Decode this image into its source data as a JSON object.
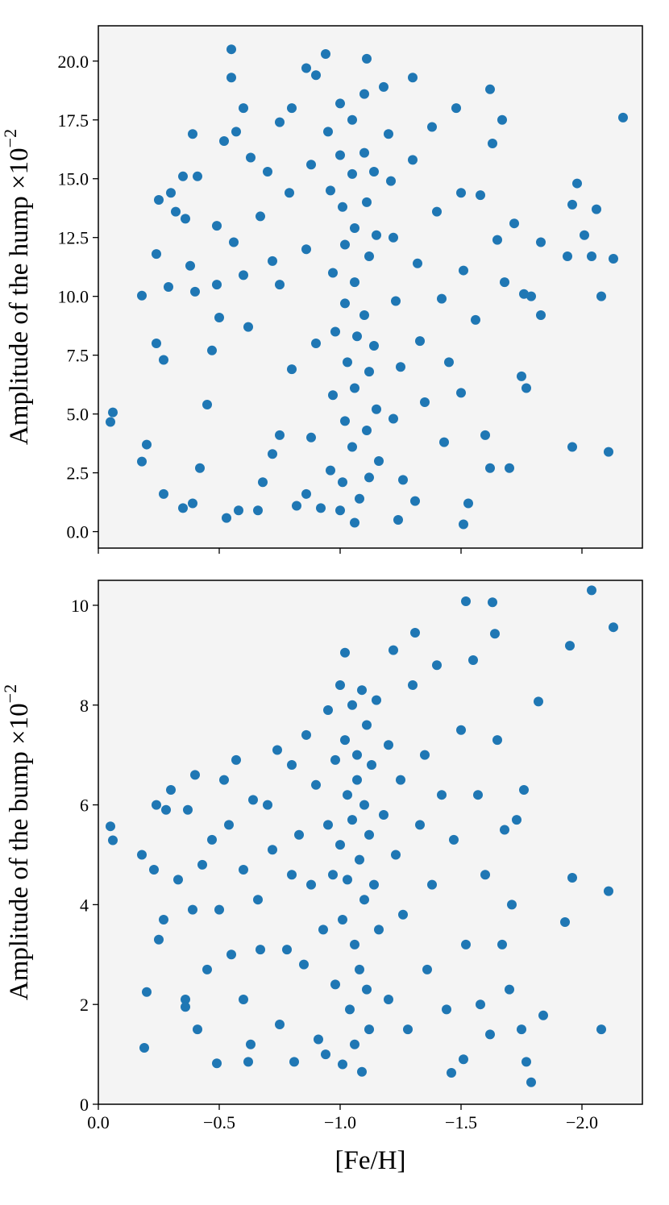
{
  "chart_data": [
    {
      "type": "scatter",
      "ylabel": "Amplitude of the hump ×10",
      "ylabel_exponent": "−2",
      "color": "#1f77b4",
      "xlim": [
        0,
        -2.25
      ],
      "xticks": [
        0,
        -0.5,
        -1,
        -1.5,
        -2
      ],
      "ylim": [
        -0.7,
        21.5
      ],
      "yticks": [
        {
          "value": 0,
          "label": "0.0"
        },
        2.5,
        {
          "value": 5,
          "label": "5.0"
        },
        7.5,
        {
          "value": 10,
          "label": "10.0"
        },
        12.5,
        {
          "value": 15,
          "label": "15.0"
        },
        17.5,
        {
          "value": 20,
          "label": "20.0"
        }
      ],
      "x": [
        -0.05,
        -0.06,
        -0.18,
        -0.18,
        -0.2,
        -0.24,
        -0.25,
        -0.24,
        -0.27,
        -0.29,
        -0.3,
        -0.32,
        -0.35,
        -0.36,
        -0.38,
        -0.39,
        -0.4,
        -0.41,
        -0.27,
        -0.35,
        -0.39,
        -0.42,
        -0.45,
        -0.47,
        -0.49,
        -0.49,
        -0.5,
        -0.52,
        -0.55,
        -0.55,
        -0.56,
        -0.57,
        -0.6,
        -0.6,
        -0.62,
        -0.53,
        -0.58,
        -0.66,
        -0.63,
        -0.67,
        -0.7,
        -0.72,
        -0.75,
        -0.75,
        -0.79,
        -0.8,
        -0.8,
        -0.75,
        -0.72,
        -0.68,
        -0.82,
        -0.86,
        -0.9,
        -0.94,
        -0.88,
        -0.86,
        -0.9,
        -0.88,
        -0.86,
        -0.92,
        -0.95,
        -0.96,
        -0.97,
        -0.98,
        -0.97,
        -0.96,
        -1.0,
        -1.0,
        -1.01,
        -1.02,
        -1.02,
        -1.03,
        -1.02,
        -1.01,
        -1.0,
        -1.06,
        -1.05,
        -1.05,
        -1.06,
        -1.06,
        -1.07,
        -1.06,
        -1.05,
        -1.08,
        -1.11,
        -1.1,
        -1.1,
        -1.11,
        -1.12,
        -1.1,
        -1.12,
        -1.11,
        -1.12,
        -1.14,
        -1.15,
        -1.14,
        -1.15,
        -1.16,
        -1.18,
        -1.2,
        -1.21,
        -1.22,
        -1.23,
        -1.25,
        -1.22,
        -1.26,
        -1.24,
        -1.3,
        -1.3,
        -1.32,
        -1.33,
        -1.35,
        -1.31,
        -1.38,
        -1.4,
        -1.42,
        -1.45,
        -1.43,
        -1.48,
        -1.5,
        -1.51,
        -1.5,
        -1.51,
        -1.53,
        -1.56,
        -1.58,
        -1.6,
        -1.62,
        -1.63,
        -1.62,
        -1.65,
        -1.67,
        -1.68,
        -1.7,
        -1.72,
        -1.75,
        -1.77,
        -1.76,
        -1.79,
        -1.83,
        -1.83,
        -1.94,
        -1.96,
        -1.98,
        -1.96,
        -2.01,
        -2.04,
        -2.08,
        -2.06,
        -2.11,
        -2.13,
        -2.17
      ],
      "values": [
        4.66,
        5.07,
        10.03,
        2.98,
        3.7,
        11.8,
        14.1,
        8.0,
        7.3,
        10.4,
        14.4,
        13.6,
        15.1,
        13.3,
        11.3,
        16.9,
        10.2,
        15.1,
        1.6,
        1.0,
        1.2,
        2.7,
        5.4,
        7.7,
        10.5,
        13.0,
        9.1,
        16.6,
        20.5,
        19.3,
        12.3,
        17.0,
        18.0,
        10.9,
        8.7,
        0.58,
        0.9,
        0.9,
        15.9,
        13.4,
        15.3,
        11.5,
        17.4,
        10.5,
        14.4,
        18.0,
        6.9,
        4.1,
        3.3,
        2.1,
        1.1,
        19.7,
        19.4,
        20.3,
        15.6,
        12.0,
        8.0,
        4.0,
        1.6,
        1.0,
        17.0,
        14.5,
        11.0,
        8.5,
        5.8,
        2.6,
        18.2,
        16.0,
        13.8,
        12.2,
        9.7,
        7.2,
        4.7,
        2.1,
        0.9,
        0.38,
        17.5,
        15.2,
        12.9,
        10.6,
        8.3,
        6.1,
        3.6,
        1.4,
        20.1,
        18.6,
        16.1,
        14.0,
        11.7,
        9.2,
        6.8,
        4.3,
        2.3,
        15.3,
        12.6,
        7.9,
        5.2,
        3.0,
        18.9,
        16.9,
        14.9,
        12.5,
        9.8,
        7.0,
        4.8,
        2.2,
        0.5,
        19.3,
        15.8,
        11.4,
        8.1,
        5.5,
        1.3,
        17.2,
        13.6,
        9.9,
        7.2,
        3.8,
        18.0,
        14.4,
        11.1,
        5.9,
        0.31,
        1.2,
        9.0,
        14.3,
        4.1,
        18.8,
        16.5,
        2.7,
        12.4,
        17.5,
        10.6,
        2.7,
        13.1,
        6.6,
        6.1,
        10.1,
        10.0,
        12.3,
        9.2,
        11.7,
        13.9,
        14.8,
        3.6,
        12.6,
        11.7,
        10.0,
        13.7,
        3.39,
        11.6,
        17.6
      ]
    },
    {
      "type": "scatter",
      "ylabel": "Amplitude of the bump ×10",
      "ylabel_exponent": "−2",
      "xlabel": "[Fe/H]",
      "color": "#1f77b4",
      "xlim": [
        0,
        -2.25
      ],
      "xticks": [
        {
          "value": 0,
          "label": "0.0"
        },
        {
          "value": -0.5,
          "label": "−0.5"
        },
        {
          "value": -1,
          "label": "−1.0"
        },
        {
          "value": -1.5,
          "label": "−1.5"
        },
        {
          "value": -2,
          "label": "−2.0"
        }
      ],
      "ylim": [
        0,
        10.5
      ],
      "yticks": [
        0,
        2,
        4,
        6,
        8,
        10
      ],
      "x": [
        -0.05,
        -0.06,
        -0.19,
        -0.2,
        -0.18,
        -0.23,
        -0.24,
        -0.25,
        -0.27,
        -0.28,
        -0.3,
        -0.33,
        -0.36,
        -0.36,
        -0.37,
        -0.39,
        -0.4,
        -0.41,
        -0.43,
        -0.45,
        -0.47,
        -0.49,
        -0.5,
        -0.52,
        -0.54,
        -0.55,
        -0.57,
        -0.6,
        -0.6,
        -0.62,
        -0.63,
        -0.64,
        -0.66,
        -0.67,
        -0.7,
        -0.72,
        -0.74,
        -0.75,
        -0.78,
        -0.8,
        -0.8,
        -0.81,
        -0.83,
        -0.85,
        -0.86,
        -0.88,
        -0.9,
        -0.91,
        -0.93,
        -0.95,
        -0.95,
        -0.94,
        -0.97,
        -0.98,
        -0.98,
        -1.0,
        -1.0,
        -1.01,
        -1.01,
        -1.02,
        -1.02,
        -1.03,
        -1.03,
        -1.04,
        -1.05,
        -1.05,
        -1.06,
        -1.06,
        -1.07,
        -1.07,
        -1.08,
        -1.08,
        -1.09,
        -1.09,
        -1.1,
        -1.1,
        -1.11,
        -1.11,
        -1.12,
        -1.12,
        -1.13,
        -1.14,
        -1.15,
        -1.16,
        -1.18,
        -1.2,
        -1.2,
        -1.22,
        -1.23,
        -1.25,
        -1.26,
        -1.28,
        -1.3,
        -1.31,
        -1.33,
        -1.35,
        -1.36,
        -1.38,
        -1.4,
        -1.42,
        -1.44,
        -1.46,
        -1.47,
        -1.5,
        -1.51,
        -1.52,
        -1.52,
        -1.55,
        -1.57,
        -1.58,
        -1.6,
        -1.62,
        -1.63,
        -1.64,
        -1.65,
        -1.67,
        -1.68,
        -1.7,
        -1.71,
        -1.73,
        -1.75,
        -1.76,
        -1.77,
        -1.79,
        -1.82,
        -1.84,
        -1.93,
        -1.95,
        -1.96,
        -2.04,
        -2.08,
        -2.11,
        -2.13
      ],
      "values": [
        5.57,
        5.29,
        1.13,
        2.25,
        5.0,
        4.7,
        6.0,
        3.3,
        3.7,
        5.9,
        6.3,
        4.5,
        2.1,
        1.95,
        5.9,
        3.9,
        6.6,
        1.5,
        4.8,
        2.7,
        5.3,
        0.82,
        3.9,
        6.5,
        5.6,
        3.0,
        6.9,
        4.7,
        2.1,
        0.85,
        1.2,
        6.1,
        4.1,
        3.1,
        6.0,
        5.1,
        7.1,
        1.6,
        3.1,
        4.6,
        6.8,
        0.85,
        5.4,
        2.8,
        7.4,
        4.4,
        6.4,
        1.3,
        3.5,
        7.9,
        5.6,
        1.0,
        4.6,
        6.9,
        2.4,
        8.4,
        5.2,
        3.7,
        0.8,
        9.05,
        7.3,
        6.2,
        4.5,
        1.9,
        8.0,
        5.7,
        3.2,
        1.2,
        7.0,
        6.5,
        4.9,
        2.7,
        8.3,
        0.65,
        6.0,
        4.1,
        7.6,
        2.3,
        5.4,
        1.5,
        6.8,
        4.4,
        8.1,
        3.5,
        5.8,
        7.2,
        2.1,
        9.1,
        5.0,
        6.5,
        3.8,
        1.5,
        8.4,
        9.45,
        5.6,
        7.0,
        2.7,
        4.4,
        8.8,
        6.2,
        1.9,
        0.63,
        5.3,
        7.5,
        0.9,
        10.08,
        3.2,
        8.9,
        6.2,
        2.0,
        4.6,
        1.4,
        10.06,
        9.43,
        7.3,
        3.2,
        5.5,
        2.3,
        4.0,
        5.7,
        1.5,
        6.3,
        0.85,
        0.44,
        8.07,
        1.78,
        3.65,
        9.19,
        4.54,
        10.3,
        1.5,
        4.27,
        9.56
      ]
    }
  ]
}
